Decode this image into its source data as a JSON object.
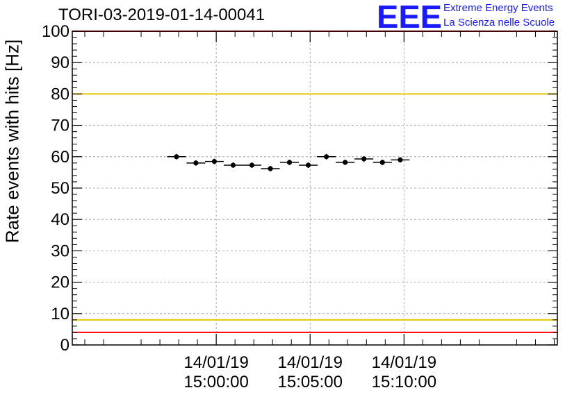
{
  "title": "TORI-03-2019-01-14-00041",
  "logo": {
    "mark": "EEE",
    "line1": "Extreme Energy Events",
    "line2": "La Scienza nelle Scuole",
    "color": "#1a1aff"
  },
  "chart_data": {
    "type": "scatter",
    "ylabel": "Rate events with hits [Hz]",
    "ylim": [
      0,
      100
    ],
    "yticks": [
      0,
      10,
      20,
      30,
      40,
      50,
      60,
      70,
      80,
      90,
      100
    ],
    "xlim_seconds": [
      -460,
      1090
    ],
    "xticks": [
      {
        "t": 0,
        "date": "14/01/19",
        "time": "15:00:00"
      },
      {
        "t": 300,
        "date": "14/01/19",
        "time": "15:05:00"
      },
      {
        "t": 600,
        "date": "14/01/19",
        "time": "15:10:00"
      }
    ],
    "grid": true,
    "reference_lines": [
      {
        "value": 100,
        "color": "#ff0000"
      },
      {
        "value": 80,
        "color": "#e6c800"
      },
      {
        "value": 8,
        "color": "#e6c800"
      },
      {
        "value": 4,
        "color": "#ff0000"
      }
    ],
    "points": [
      {
        "t": -127,
        "half_width": 30,
        "y": 60.0
      },
      {
        "t": -65,
        "half_width": 30,
        "y": 58.0
      },
      {
        "t": -6,
        "half_width": 30,
        "y": 58.5
      },
      {
        "t": 54,
        "half_width": 30,
        "y": 57.3
      },
      {
        "t": 114,
        "half_width": 30,
        "y": 57.3
      },
      {
        "t": 173,
        "half_width": 30,
        "y": 56.2
      },
      {
        "t": 234,
        "half_width": 30,
        "y": 58.2
      },
      {
        "t": 294,
        "half_width": 30,
        "y": 57.3
      },
      {
        "t": 352,
        "half_width": 30,
        "y": 60.0
      },
      {
        "t": 412,
        "half_width": 30,
        "y": 58.2
      },
      {
        "t": 472,
        "half_width": 30,
        "y": 59.3
      },
      {
        "t": 531,
        "half_width": 30,
        "y": 58.2
      },
      {
        "t": 588,
        "half_width": 30,
        "y": 59.0
      }
    ]
  }
}
